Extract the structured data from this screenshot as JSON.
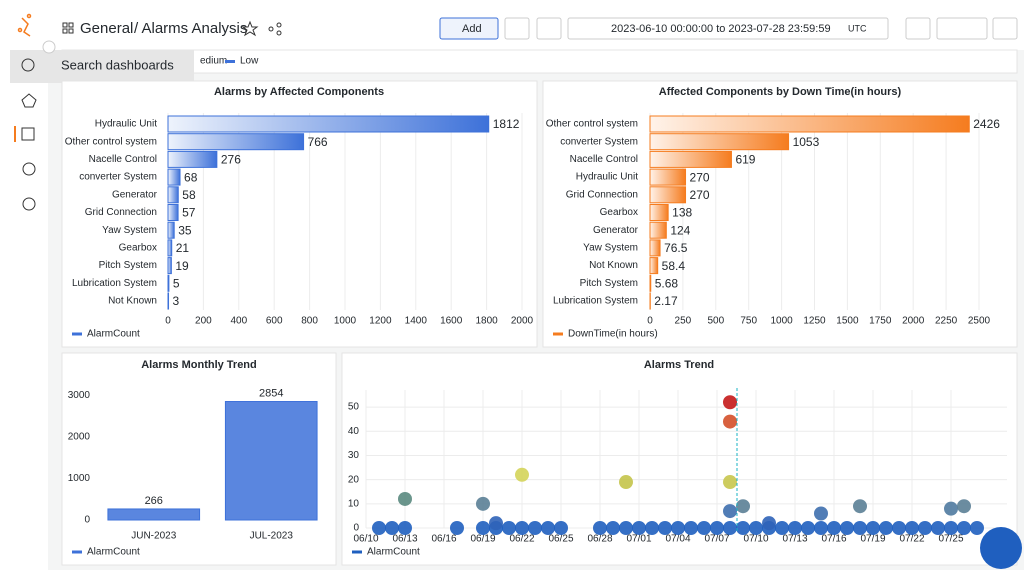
{
  "header": {
    "crumb": "General",
    "page": "/ Alarms Analysis",
    "add": "Add",
    "time_range": "2023-06-10 00:00:00 to 2023-07-28 23:59:59",
    "timezone": "UTC"
  },
  "sidebar": {
    "tooltip": "Search dashboards"
  },
  "top_legend": [
    "edium",
    "Low"
  ],
  "chart_data": [
    {
      "type": "hbar",
      "title": "Alarms by Affected Components",
      "categories": [
        "Hydraulic Unit",
        "Other control system",
        "Nacelle Control",
        "converter System",
        "Generator",
        "Grid Connection",
        "Yaw System",
        "Gearbox",
        "Pitch System",
        "Lubrication System",
        "Not Known"
      ],
      "series": [
        {
          "name": "AlarmCount",
          "color": "#3d71d9",
          "values": [
            1812,
            766,
            276,
            68,
            58,
            57,
            35,
            21,
            19,
            5,
            3
          ]
        }
      ],
      "xlim": [
        0,
        2000
      ],
      "xticks": [
        0,
        200,
        400,
        600,
        800,
        1000,
        1200,
        1400,
        1600,
        1800,
        2000
      ],
      "grid": true
    },
    {
      "type": "hbar",
      "title": "Affected Components by Down Time(in hours)",
      "categories": [
        "Other control system",
        "converter System",
        "Nacelle Control",
        "Hydraulic Unit",
        "Grid Connection",
        "Gearbox",
        "Generator",
        "Yaw System",
        "Not Known",
        "Pitch System",
        "Lubrication System"
      ],
      "series": [
        {
          "name": "DownTime(in hours)",
          "color": "#f57c1f",
          "values": [
            2426,
            1053,
            619,
            270,
            270,
            138,
            124,
            76.5,
            58.4,
            5.68,
            2.17
          ]
        }
      ],
      "xlim": [
        0,
        2500
      ],
      "xticks": [
        0,
        250,
        500,
        750,
        1000,
        1250,
        1500,
        1750,
        2000,
        2250,
        2500
      ],
      "grid": true
    },
    {
      "type": "bar",
      "title": "Alarms Monthly Trend",
      "categories": [
        "JUN-2023",
        "JUL-2023"
      ],
      "series": [
        {
          "name": "AlarmCount",
          "color": "#3d71d9",
          "values": [
            266,
            2854
          ]
        }
      ],
      "ylim": [
        0,
        3300
      ],
      "yticks": [
        0,
        1000,
        2000,
        3000
      ],
      "grid": false
    },
    {
      "type": "scatter",
      "title": "Alarms Trend",
      "x": [
        "06/11",
        "06/12",
        "06/13",
        "06/17",
        "06/19",
        "06/20",
        "06/21",
        "06/22",
        "06/23",
        "06/24",
        "06/25",
        "06/28",
        "06/29",
        "06/30",
        "07/01",
        "07/02",
        "07/03",
        "07/04",
        "07/05",
        "07/06",
        "07/07",
        "07/08",
        "07/09",
        "07/10",
        "07/11",
        "07/12",
        "07/13",
        "07/14",
        "07/15",
        "07/16",
        "07/17",
        "07/18",
        "07/19",
        "07/20",
        "07/21",
        "07/22",
        "07/23",
        "07/24",
        "07/25",
        "07/26",
        "07/27",
        "06/13",
        "06/19",
        "06/20",
        "06/22",
        "06/30",
        "07/08",
        "07/08",
        "07/08",
        "07/08",
        "07/09",
        "07/11",
        "07/15",
        "07/18",
        "07/25",
        "07/26"
      ],
      "series": [
        {
          "name": "AlarmCount",
          "color": "#1f5fbf",
          "values": [
            0,
            0,
            0,
            0,
            0,
            0,
            0,
            0,
            0,
            0,
            0,
            0,
            0,
            0,
            0,
            0,
            0,
            0,
            0,
            0,
            0,
            0,
            0,
            0,
            0,
            0,
            0,
            0,
            0,
            0,
            0,
            0,
            0,
            0,
            0,
            0,
            0,
            0,
            0,
            0,
            0,
            12,
            10,
            2,
            22,
            19,
            52,
            44,
            19,
            7,
            9,
            2,
            6,
            9,
            8,
            9
          ],
          "point_colors": [
            "#1f5fbf",
            "#1f5fbf",
            "#1f5fbf",
            "#1f5fbf",
            "#1f5fbf",
            "#1f5fbf",
            "#1f5fbf",
            "#1f5fbf",
            "#1f5fbf",
            "#1f5fbf",
            "#1f5fbf",
            "#1f5fbf",
            "#1f5fbf",
            "#1f5fbf",
            "#1f5fbf",
            "#1f5fbf",
            "#1f5fbf",
            "#1f5fbf",
            "#1f5fbf",
            "#1f5fbf",
            "#1f5fbf",
            "#1f5fbf",
            "#1f5fbf",
            "#1f5fbf",
            "#1f5fbf",
            "#1f5fbf",
            "#1f5fbf",
            "#1f5fbf",
            "#1f5fbf",
            "#1f5fbf",
            "#1f5fbf",
            "#1f5fbf",
            "#1f5fbf",
            "#1f5fbf",
            "#1f5fbf",
            "#1f5fbf",
            "#1f5fbf",
            "#1f5fbf",
            "#1f5fbf",
            "#1f5fbf",
            "#1f5fbf",
            "#5a8a80",
            "#5b7f96",
            "#2f63b8",
            "#d4d45a",
            "#c4c44a",
            "#c41a1a",
            "#d4502a",
            "#c8c64e",
            "#3e6fae",
            "#5b7f96",
            "#2f63b8",
            "#3e6fae",
            "#5b7f96",
            "#4f7aa0",
            "#5b7f96"
          ]
        }
      ],
      "xlim": [
        "06/10",
        "07/27"
      ],
      "xticks": [
        "06/10",
        "06/13",
        "06/16",
        "06/19",
        "06/22",
        "06/25",
        "06/28",
        "07/01",
        "07/04",
        "07/07",
        "07/10",
        "07/13",
        "07/16",
        "07/19",
        "07/22",
        "07/25"
      ],
      "ylim": [
        0,
        55
      ],
      "yticks": [
        0,
        10,
        20,
        30,
        40,
        50
      ],
      "grid": true
    }
  ]
}
